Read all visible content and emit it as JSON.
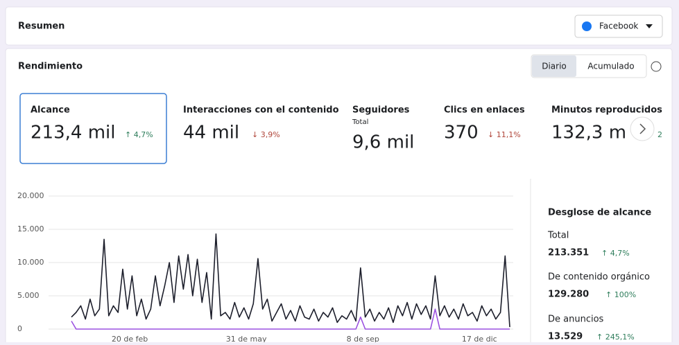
{
  "summary": {
    "title": "Resumen",
    "platform": "Facebook"
  },
  "performance": {
    "title": "Rendimiento",
    "toggle": [
      "Diario",
      "Acumulado"
    ],
    "metrics": [
      {
        "label": "Alcance",
        "value": "213,4 mil",
        "change": "↑ 4,7%"
      },
      {
        "label": "Interacciones con el contenido",
        "value": "44 mil",
        "change": "↓ 3,9%"
      },
      {
        "label": "Seguidores",
        "sublabel": "Total",
        "value": "9,6 mil"
      },
      {
        "label": "Clics en enlaces",
        "value": "370",
        "change": "↓ 11,1%"
      },
      {
        "label": "Minutos reproducidos",
        "value": "132,3 m",
        "change": "2"
      }
    ]
  },
  "chart": {
    "type": "line",
    "x": [
      0,
      4,
      8,
      12,
      16,
      20,
      24,
      28,
      32,
      36,
      40,
      44,
      48,
      52,
      56,
      60,
      64,
      68,
      72,
      76,
      80,
      84,
      88,
      92,
      96,
      100,
      104,
      108,
      112,
      116,
      120,
      124,
      128,
      132,
      136,
      140,
      144,
      148,
      152,
      156,
      160,
      164,
      168,
      172,
      176,
      180,
      184,
      188,
      192,
      196,
      200,
      204,
      208,
      212,
      216,
      220,
      224,
      228,
      232,
      236,
      240,
      244,
      248,
      252,
      256,
      260,
      264,
      268,
      272,
      276,
      280,
      284,
      288,
      292,
      296,
      300,
      304,
      308,
      312,
      316,
      320,
      324,
      328,
      332,
      336,
      340,
      344,
      348,
      352,
      356,
      360,
      364,
      368,
      372,
      376
    ],
    "xlim": [
      0,
      376
    ],
    "xticks": [
      {
        "value": 50,
        "label": "20 de feb"
      },
      {
        "value": 150,
        "label": "31 de may"
      },
      {
        "value": 250,
        "label": "8 de sep"
      },
      {
        "value": 350,
        "label": "17 de dic"
      }
    ],
    "ylim": [
      0,
      20000
    ],
    "yticks": [
      {
        "value": 0,
        "label": "0"
      },
      {
        "value": 5000,
        "label": "5.000"
      },
      {
        "value": 10000,
        "label": "10.000"
      },
      {
        "value": 15000,
        "label": "15.000"
      },
      {
        "value": 20000,
        "label": "20.000"
      }
    ],
    "grid": true,
    "series": [
      {
        "color": "#1c1e2b",
        "values": [
          1800,
          2500,
          3500,
          1500,
          4500,
          2000,
          3000,
          13500,
          2000,
          3500,
          2500,
          9000,
          3000,
          8000,
          2000,
          4500,
          1500,
          3000,
          8000,
          3500,
          6500,
          10000,
          4000,
          11000,
          6000,
          11200,
          5000,
          10500,
          4000,
          8500,
          1500,
          14300,
          2000,
          2500,
          1500,
          4000,
          1800,
          3200,
          1500,
          3800,
          10600,
          3000,
          4500,
          1200,
          2500,
          3800,
          1500,
          2800,
          1200,
          3500,
          1800,
          1500,
          3000,
          1200,
          2500,
          1800,
          3200,
          1000,
          2000,
          1500,
          2800,
          1200,
          9200,
          1800,
          3000,
          1200,
          2500,
          1500,
          3200,
          1000,
          3500,
          2000,
          4000,
          1500,
          3800,
          2200,
          3500,
          1500,
          8000,
          2000,
          3500,
          1800,
          3000,
          1500,
          3800,
          2000,
          2500,
          1200,
          3500,
          2000,
          3000,
          1500,
          2500,
          11000,
          300
        ]
      },
      {
        "color": "#9b51e0",
        "values": [
          1200,
          0,
          0,
          0,
          0,
          0,
          0,
          0,
          0,
          0,
          0,
          0,
          0,
          0,
          0,
          0,
          0,
          0,
          0,
          0,
          0,
          0,
          0,
          0,
          0,
          0,
          0,
          0,
          0,
          0,
          0,
          0,
          0,
          0,
          0,
          0,
          0,
          0,
          0,
          0,
          0,
          0,
          0,
          0,
          0,
          0,
          0,
          0,
          0,
          0,
          0,
          0,
          0,
          0,
          0,
          0,
          0,
          0,
          0,
          0,
          0,
          0,
          1800,
          0,
          0,
          0,
          0,
          0,
          0,
          0,
          0,
          0,
          0,
          0,
          0,
          0,
          0,
          0,
          3000,
          0,
          0,
          0,
          0,
          0,
          0,
          0,
          0,
          0,
          0,
          0,
          0,
          0,
          0,
          0,
          0
        ]
      }
    ]
  },
  "breakdown": {
    "title": "Desglose de alcance",
    "items": [
      {
        "label": "Total",
        "value": "213.351",
        "change": "↑ 4,7%"
      },
      {
        "label": "De contenido orgánico",
        "value": "129.280",
        "change": "↑ 100%"
      },
      {
        "label": "De anuncios",
        "value": "13.529",
        "change": "↑ 245,1%"
      }
    ]
  }
}
